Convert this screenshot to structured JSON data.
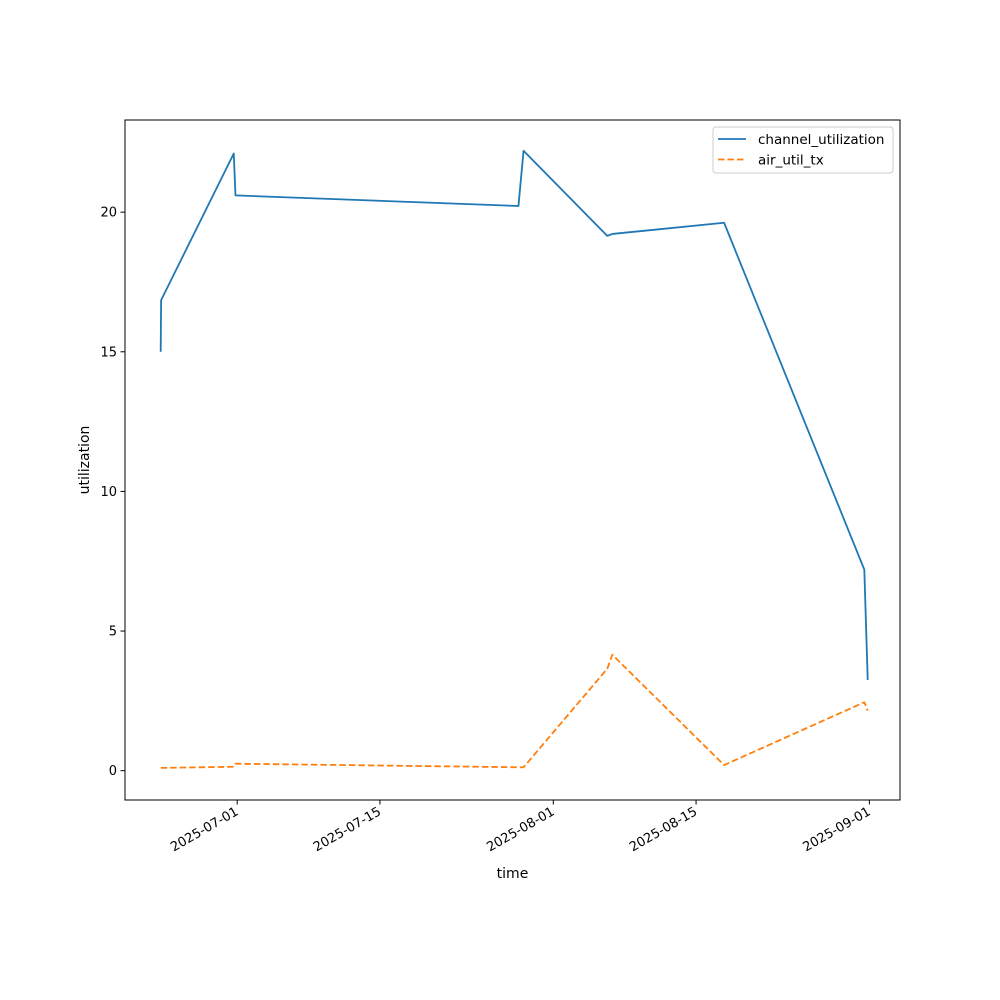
{
  "chart_data": {
    "type": "line",
    "title": "",
    "xlabel": "time",
    "ylabel": "utilization",
    "x_type": "date",
    "xlim": [
      "2025-06-20",
      "2025-09-04"
    ],
    "ylim": [
      -1.05,
      23.3
    ],
    "x_ticks": [
      "2025-07-01",
      "2025-07-15",
      "2025-08-01",
      "2025-08-15",
      "2025-09-01"
    ],
    "y_ticks": [
      0,
      5,
      10,
      15,
      20
    ],
    "grid": false,
    "legend": "top-right",
    "series": [
      {
        "name": "channel_utilization",
        "color": "#1f77b4",
        "dash": "solid",
        "points": [
          [
            "2025-06-23T12:00",
            15.0
          ],
          [
            "2025-06-23T13:00",
            16.85
          ],
          [
            "2025-06-30T16:00",
            22.1
          ],
          [
            "2025-06-30T20:00",
            20.6
          ],
          [
            "2025-07-28T14:00",
            20.22
          ],
          [
            "2025-07-29T02:00",
            22.2
          ],
          [
            "2025-08-06T07:00",
            19.15
          ],
          [
            "2025-08-06T19:00",
            19.22
          ],
          [
            "2025-08-17T18:00",
            19.62
          ],
          [
            "2025-08-31T12:00",
            7.2
          ],
          [
            "2025-08-31T20:00",
            3.25
          ]
        ]
      },
      {
        "name": "air_util_tx",
        "color": "#ff7f0e",
        "dash": "dashed",
        "points": [
          [
            "2025-06-23T12:00",
            0.1
          ],
          [
            "2025-06-30T16:00",
            0.14
          ],
          [
            "2025-06-30T20:00",
            0.25
          ],
          [
            "2025-07-29T02:00",
            0.12
          ],
          [
            "2025-08-06T07:00",
            3.65
          ],
          [
            "2025-08-06T19:00",
            4.15
          ],
          [
            "2025-08-17T18:00",
            0.2
          ],
          [
            "2025-08-31T12:00",
            2.45
          ],
          [
            "2025-08-31T20:00",
            2.15
          ]
        ]
      }
    ]
  }
}
